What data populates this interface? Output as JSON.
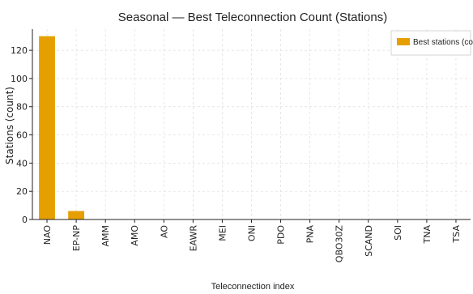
{
  "chart_data": {
    "type": "bar",
    "title": "Seasonal — Best Teleconnection Count (Stations)",
    "xlabel": "Teleconnection index",
    "ylabel": "Stations (count)",
    "categories": [
      "NAO",
      "EP-NP",
      "AMM",
      "AMO",
      "AO",
      "EAWR",
      "MEI",
      "ONI",
      "PDO",
      "PNA",
      "QBO30Z",
      "SCAND",
      "SOI",
      "TNA",
      "TSA"
    ],
    "series": [
      {
        "name": "Best stations (count)",
        "values": [
          130,
          6,
          0,
          0,
          0,
          0,
          0,
          0,
          0,
          0,
          0,
          0,
          0,
          0,
          0
        ]
      }
    ],
    "ylim": [
      0,
      135
    ],
    "yticks": [
      0,
      20,
      40,
      60,
      80,
      100,
      120
    ],
    "grid": true,
    "legend": "top-right",
    "colors": {
      "bar": "#E69F00",
      "grid": "#dddddd",
      "axis": "#222222"
    }
  }
}
